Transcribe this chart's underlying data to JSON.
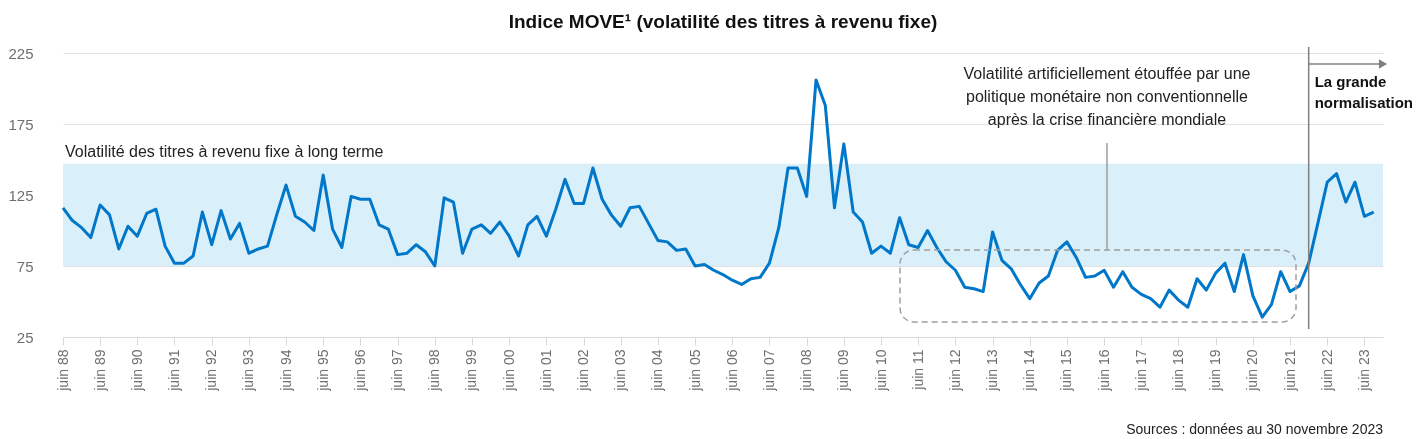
{
  "chart_data": {
    "type": "line",
    "title": "Indice MOVE¹ (volatilité des titres à revenu fixe)",
    "x": [
      "1988-06",
      "1988-09",
      "1988-12",
      "1989-03",
      "1989-06",
      "1989-09",
      "1989-12",
      "1990-03",
      "1990-06",
      "1990-09",
      "1990-12",
      "1991-03",
      "1991-06",
      "1991-09",
      "1991-12",
      "1992-03",
      "1992-06",
      "1992-09",
      "1992-12",
      "1993-03",
      "1993-06",
      "1993-09",
      "1993-12",
      "1994-03",
      "1994-06",
      "1994-09",
      "1994-12",
      "1995-03",
      "1995-06",
      "1995-09",
      "1995-12",
      "1996-03",
      "1996-06",
      "1996-09",
      "1996-12",
      "1997-03",
      "1997-06",
      "1997-09",
      "1997-12",
      "1998-03",
      "1998-06",
      "1998-09",
      "1998-12",
      "1999-03",
      "1999-06",
      "1999-09",
      "1999-12",
      "2000-03",
      "2000-06",
      "2000-09",
      "2000-12",
      "2001-03",
      "2001-06",
      "2001-09",
      "2001-12",
      "2002-03",
      "2002-06",
      "2002-09",
      "2002-12",
      "2003-03",
      "2003-06",
      "2003-09",
      "2003-12",
      "2004-03",
      "2004-06",
      "2004-09",
      "2004-12",
      "2005-03",
      "2005-06",
      "2005-09",
      "2005-12",
      "2006-03",
      "2006-06",
      "2006-09",
      "2006-12",
      "2007-03",
      "2007-06",
      "2007-09",
      "2007-12",
      "2008-03",
      "2008-06",
      "2008-09",
      "2008-12",
      "2009-03",
      "2009-06",
      "2009-09",
      "2009-12",
      "2010-03",
      "2010-06",
      "2010-09",
      "2010-12",
      "2011-03",
      "2011-06",
      "2011-09",
      "2011-12",
      "2012-03",
      "2012-06",
      "2012-09",
      "2012-12",
      "2013-03",
      "2013-06",
      "2013-09",
      "2013-12",
      "2014-03",
      "2014-06",
      "2014-09",
      "2014-12",
      "2015-03",
      "2015-06",
      "2015-09",
      "2015-12",
      "2016-03",
      "2016-06",
      "2016-09",
      "2016-12",
      "2017-03",
      "2017-06",
      "2017-09",
      "2017-12",
      "2018-03",
      "2018-06",
      "2018-09",
      "2018-12",
      "2019-03",
      "2019-06",
      "2019-09",
      "2019-12",
      "2020-03",
      "2020-06",
      "2020-09",
      "2020-12",
      "2021-03",
      "2021-06",
      "2021-09",
      "2021-12",
      "2022-03",
      "2022-06",
      "2022-09",
      "2022-12",
      "2023-03",
      "2023-06",
      "2023-09"
    ],
    "series": [
      {
        "color": "#0077c8",
        "values": [
          116,
          107,
          102,
          95,
          118,
          111,
          87,
          103,
          96,
          112,
          115,
          89,
          77,
          77,
          82,
          113,
          90,
          114,
          94,
          105,
          84,
          87,
          89,
          111,
          132,
          110,
          106,
          100,
          139,
          101,
          88,
          124,
          122,
          122,
          104,
          101,
          83,
          84,
          90,
          85,
          75,
          123,
          120,
          84,
          101,
          104,
          98,
          106,
          96,
          82,
          104,
          110,
          96,
          115,
          136,
          119,
          119,
          144,
          122,
          111,
          103,
          116,
          117,
          105,
          93,
          92,
          86,
          87,
          75,
          76,
          72,
          69,
          65,
          62,
          66,
          67,
          77,
          102,
          144,
          144,
          124,
          206,
          188,
          116,
          161,
          113,
          106,
          84,
          89,
          84,
          109,
          90,
          88,
          100,
          88,
          78,
          72,
          60,
          59,
          57,
          99,
          79,
          73,
          62,
          52,
          63,
          68,
          86,
          92,
          81,
          67,
          68,
          72,
          60,
          71,
          60,
          55,
          52,
          46,
          58,
          51,
          46,
          66,
          58,
          70,
          77,
          57,
          83,
          54,
          39,
          48,
          71,
          57,
          61,
          77,
          105,
          134,
          140,
          120,
          134,
          110,
          113
        ]
      }
    ],
    "xlim": [
      "1988-06",
      "2023-12"
    ],
    "xticks": [
      {
        "value": "1988-06",
        "label": "juin 88"
      },
      {
        "value": "1989-06",
        "label": "juin 89"
      },
      {
        "value": "1990-06",
        "label": "juin 90"
      },
      {
        "value": "1991-06",
        "label": "juin 91"
      },
      {
        "value": "1992-06",
        "label": "juin 92"
      },
      {
        "value": "1993-06",
        "label": "juin 93"
      },
      {
        "value": "1994-06",
        "label": "juin 94"
      },
      {
        "value": "1995-06",
        "label": "juin 95"
      },
      {
        "value": "1996-06",
        "label": "juin 96"
      },
      {
        "value": "1997-06",
        "label": "juin 97"
      },
      {
        "value": "1998-06",
        "label": "juin 98"
      },
      {
        "value": "1999-06",
        "label": "juin 99"
      },
      {
        "value": "2000-06",
        "label": "juin 00"
      },
      {
        "value": "2001-06",
        "label": "juin 01"
      },
      {
        "value": "2002-06",
        "label": "juin 02"
      },
      {
        "value": "2003-06",
        "label": "juin 03"
      },
      {
        "value": "2004-06",
        "label": "juin 04"
      },
      {
        "value": "2005-06",
        "label": "juin 05"
      },
      {
        "value": "2006-06",
        "label": "juin 06"
      },
      {
        "value": "2007-06",
        "label": "juin 07"
      },
      {
        "value": "2008-06",
        "label": "juin 08"
      },
      {
        "value": "2009-06",
        "label": "juin 09"
      },
      {
        "value": "2010-06",
        "label": "juin 10"
      },
      {
        "value": "2011-06",
        "label": "juin 11"
      },
      {
        "value": "2012-06",
        "label": "juin 12"
      },
      {
        "value": "2013-06",
        "label": "juin 13"
      },
      {
        "value": "2014-06",
        "label": "juin 14"
      },
      {
        "value": "2015-06",
        "label": "juin 15"
      },
      {
        "value": "2016-06",
        "label": "juin 16"
      },
      {
        "value": "2017-06",
        "label": "juin 17"
      },
      {
        "value": "2018-06",
        "label": "juin 18"
      },
      {
        "value": "2019-06",
        "label": "juin 19"
      },
      {
        "value": "2020-06",
        "label": "juin 20"
      },
      {
        "value": "2021-06",
        "label": "juin 21"
      },
      {
        "value": "2022-06",
        "label": "juin 22"
      },
      {
        "value": "2023-06",
        "label": "juin 23"
      }
    ],
    "ylim": [
      25,
      225
    ],
    "yticks": [
      25,
      75,
      125,
      175,
      225
    ],
    "grid": "y",
    "bands": [
      {
        "axis": "y",
        "from": 75,
        "to": 147,
        "label": "Volatilité des titres à revenu fixe à long terme",
        "color": "#d9f0fb"
      }
    ],
    "ref_lines": [
      {
        "axis": "x",
        "value": "2021-12",
        "label": "La grande normalisation",
        "color": "#808080"
      }
    ],
    "annotations": [
      "Volatilité artificiellement étouffée par une politique monétaire non conventionnelle après la crise financière mondiale",
      "Sources : données au 30 novembre 2023"
    ],
    "line_style": "solid"
  }
}
